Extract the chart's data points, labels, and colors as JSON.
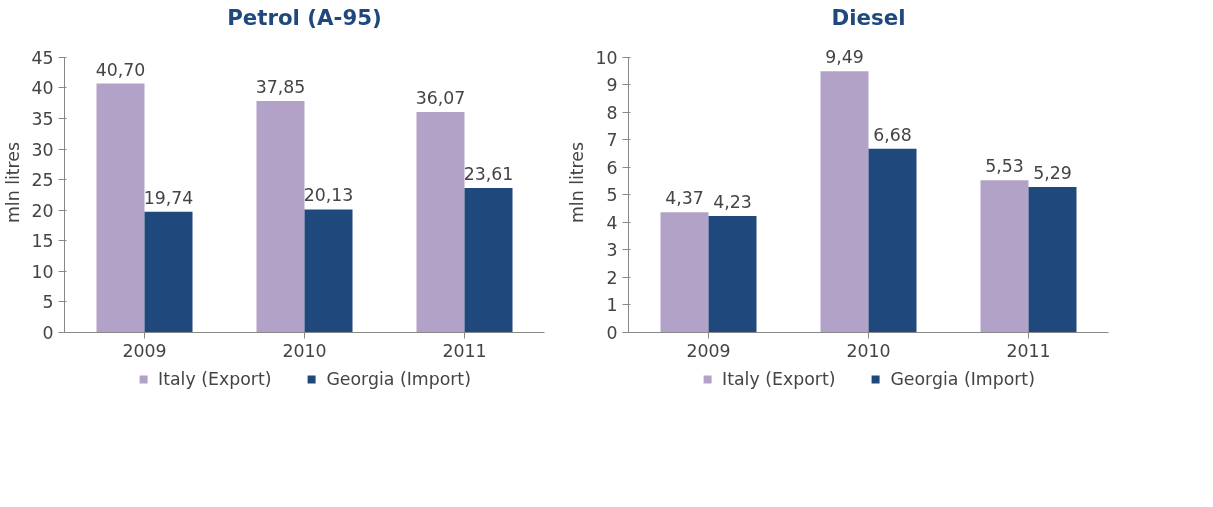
{
  "chart_data": [
    {
      "type": "bar",
      "title": "Petrol (A-95)",
      "ylabel": "mln litres",
      "categories": [
        "2009",
        "2010",
        "2011"
      ],
      "ylim": [
        0,
        45
      ],
      "yticks": [
        0,
        5,
        10,
        15,
        20,
        25,
        30,
        35,
        40,
        45
      ],
      "grid": false,
      "legend": "bottom",
      "series": [
        {
          "name": "Italy (Export)",
          "color": "#b3a2c7",
          "values": [
            40.7,
            37.85,
            36.07
          ],
          "value_labels": [
            "40,70",
            "37,85",
            "36,07"
          ]
        },
        {
          "name": "Georgia (Import)",
          "color": "#1f497d",
          "values": [
            19.74,
            20.13,
            23.61
          ],
          "value_labels": [
            "19,74",
            "20,13",
            "23,61"
          ]
        }
      ]
    },
    {
      "type": "bar",
      "title": "Diesel",
      "ylabel": "mln litres",
      "categories": [
        "2009",
        "2010",
        "2011"
      ],
      "ylim": [
        0,
        10
      ],
      "yticks": [
        0,
        1,
        2,
        3,
        4,
        5,
        6,
        7,
        8,
        9,
        10
      ],
      "grid": false,
      "legend": "bottom",
      "series": [
        {
          "name": "Italy (Export)",
          "color": "#b3a2c7",
          "values": [
            4.37,
            9.49,
            5.53
          ],
          "value_labels": [
            "4,37",
            "9,49",
            "5,53"
          ]
        },
        {
          "name": "Georgia (Import)",
          "color": "#1f497d",
          "values": [
            4.23,
            6.68,
            5.29
          ],
          "value_labels": [
            "4,23",
            "6,68",
            "5,29"
          ]
        }
      ]
    }
  ]
}
